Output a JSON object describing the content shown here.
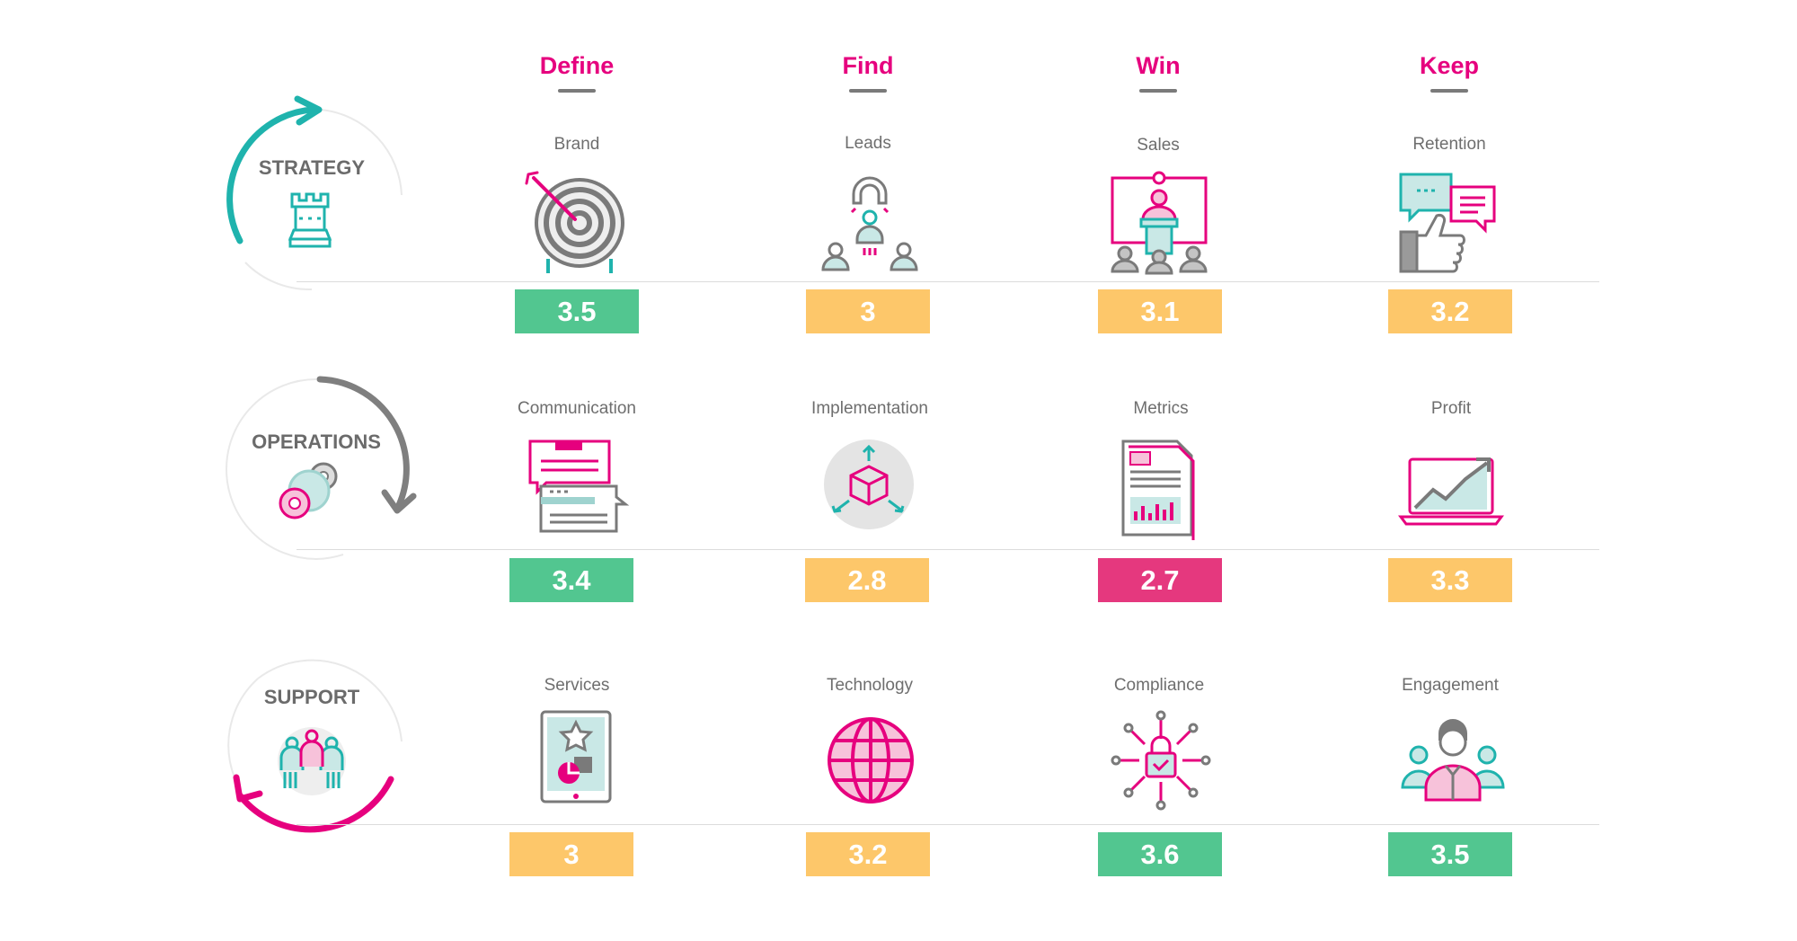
{
  "columns": [
    "Define",
    "Find",
    "Win",
    "Keep"
  ],
  "rows": [
    {
      "name": "STRATEGY",
      "cells": [
        {
          "label": "Brand",
          "score": "3.5",
          "status": "green",
          "icon": "target-icon"
        },
        {
          "label": "Leads",
          "score": "3",
          "status": "amber",
          "icon": "magnet-people-icon"
        },
        {
          "label": "Sales",
          "score": "3.1",
          "status": "amber",
          "icon": "presenter-podium-icon"
        },
        {
          "label": "Retention",
          "score": "3.2",
          "status": "amber",
          "icon": "thumbs-up-chat-icon"
        }
      ]
    },
    {
      "name": "OPERATIONS",
      "cells": [
        {
          "label": "Communication",
          "score": "3.4",
          "status": "green",
          "icon": "chat-bubbles-icon"
        },
        {
          "label": "Implementation",
          "score": "2.8",
          "status": "amber",
          "icon": "cube-arrows-icon"
        },
        {
          "label": "Metrics",
          "score": "2.7",
          "status": "pink",
          "icon": "report-document-icon"
        },
        {
          "label": "Profit",
          "score": "3.3",
          "status": "amber",
          "icon": "laptop-growth-icon"
        }
      ]
    },
    {
      "name": "SUPPORT",
      "cells": [
        {
          "label": "Services",
          "score": "3",
          "status": "amber",
          "icon": "tablet-star-icon"
        },
        {
          "label": "Technology",
          "score": "3.2",
          "status": "amber",
          "icon": "globe-icon"
        },
        {
          "label": "Compliance",
          "score": "3.6",
          "status": "green",
          "icon": "lock-network-icon"
        },
        {
          "label": "Engagement",
          "score": "3.5",
          "status": "green",
          "icon": "team-people-icon"
        }
      ]
    }
  ],
  "colors": {
    "accent": "#e6007e",
    "teal": "#1fb3ad",
    "green": "#52c690",
    "amber": "#fdc76a",
    "pink": "#e5387e",
    "gray": "#7a7a7a"
  }
}
